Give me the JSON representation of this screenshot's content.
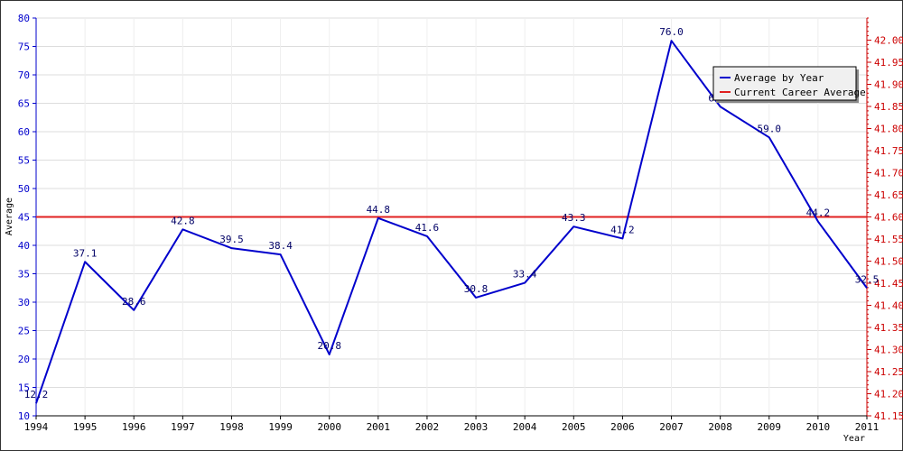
{
  "chart_data": {
    "type": "line",
    "xlabel": "Year",
    "ylabel": "Average",
    "x": [
      1994,
      1995,
      1996,
      1997,
      1998,
      1999,
      2000,
      2001,
      2002,
      2003,
      2004,
      2005,
      2006,
      2007,
      2008,
      2009,
      2010,
      2011
    ],
    "x_ticks": [
      "1994",
      "1995",
      "1996",
      "1997",
      "1998",
      "1999",
      "2000",
      "2001",
      "2002",
      "2003",
      "2004",
      "2005",
      "2006",
      "2007",
      "2008",
      "2009",
      "2010",
      "2011"
    ],
    "y_left": {
      "range": [
        10,
        80
      ],
      "ticks": [
        "10",
        "15",
        "20",
        "25",
        "30",
        "35",
        "40",
        "45",
        "50",
        "55",
        "60",
        "65",
        "70",
        "75",
        "80"
      ]
    },
    "y_right": {
      "range": [
        41.15,
        42.05
      ],
      "ticks": [
        "41.15",
        "41.20",
        "41.25",
        "41.30",
        "41.35",
        "41.40",
        "41.45",
        "41.50",
        "41.55",
        "41.60",
        "41.65",
        "41.70",
        "41.75",
        "41.80",
        "41.85",
        "41.90",
        "41.95",
        "42.00"
      ]
    },
    "series": [
      {
        "name": "Average by Year",
        "axis": "left",
        "values": [
          12.2,
          37.1,
          28.6,
          42.8,
          39.5,
          38.4,
          20.8,
          44.8,
          41.6,
          30.8,
          33.4,
          43.3,
          41.2,
          76.0,
          64.4,
          59.0,
          44.2,
          32.5
        ],
        "labels": [
          "12.2",
          "37.1",
          "28.6",
          "42.8",
          "39.5",
          "38.4",
          "20.8",
          "44.8",
          "41.6",
          "30.8",
          "33.4",
          "43.3",
          "41.2",
          "76.0",
          "64.4",
          "59.0",
          "44.2",
          "32.5"
        ],
        "color": "#0000cc"
      },
      {
        "name": "Current Career Average",
        "axis": "right",
        "value": 41.6,
        "color": "#e02020"
      }
    ],
    "grid": true,
    "legend": "top-right",
    "left_axis_color": "#0000cc",
    "right_axis_color": "#cc0000"
  }
}
